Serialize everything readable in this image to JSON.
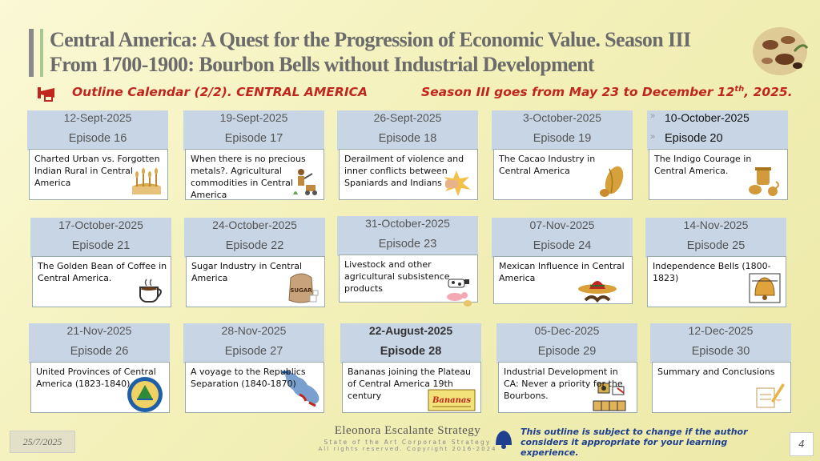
{
  "title": {
    "line1": "Central America:  A Quest for the Progression of  Economic Value. Season III",
    "line2": "From 1700-1900: Bourbon Bells without Industrial Development"
  },
  "subtitle": {
    "outline": "Outline Calendar (2/2).  CENTRAL AMERICA",
    "season_prefix": "Season III goes from May 23 to December 12",
    "season_sup": "th",
    "season_suffix": ", 2025."
  },
  "cards": [
    {
      "date": "12-Sept-2025",
      "episode": "Episode 16",
      "text": "Charted Urban vs. Forgotten Indian Rural in Central America",
      "icon": "wheat-field-icon"
    },
    {
      "date": "19-Sept-2025",
      "episode": "Episode 17",
      "text": "When there is no precious metals?.  Agricultural commodities in Central America",
      "icon": "farmer-icon"
    },
    {
      "date": "26-Sept-2025",
      "episode": "Episode 18",
      "text": "Derailment of violence and inner conflicts between Spaniards and Indians",
      "icon": "fist-icon"
    },
    {
      "date": "3-October-2025",
      "episode": "Episode 19",
      "text": "The Cacao Industry in Central America",
      "icon": "cacao-pod-icon"
    },
    {
      "date": "10-October-2025",
      "episode": "Episode 20",
      "text": "The Indigo Courage in Central America.",
      "icon": "indigo-pot-icon"
    },
    {
      "date": "17-October-2025",
      "episode": "Episode 21",
      "text": "The Golden Bean of Coffee in Central America.",
      "icon": "coffee-cup-icon"
    },
    {
      "date": "24-October-2025",
      "episode": "Episode 22",
      "text": "Sugar Industry in Central America",
      "icon": "sugar-sack-icon",
      "icon_label": "SUGAR"
    },
    {
      "date": "31-October-2025",
      "episode": "Episode 23",
      "text": "Livestock and other agricultural subsistence products",
      "icon": "livestock-icon"
    },
    {
      "date": "07-Nov-2025",
      "episode": "Episode 24",
      "text": "Mexican Influence in Central America",
      "icon": "sombrero-icon"
    },
    {
      "date": "14-Nov-2025",
      "episode": "Episode 25",
      "text": "Independence Bells (1800-1823)",
      "icon": "bell-icon"
    },
    {
      "date": "21-Nov-2025",
      "episode": "Episode 26",
      "text": "United Provinces of Central America (1823-1840)",
      "icon": "coat-of-arms-icon"
    },
    {
      "date": "28-Nov-2025",
      "episode": "Episode 27",
      "text": "A voyage to the Republics Separation  (1840-1870)",
      "icon": "map-icon"
    },
    {
      "date": "22-August-2025",
      "episode": "Episode 28",
      "text": "Bananas joining the Plateau of Central America 19th century",
      "icon": "bananas-crate-icon",
      "icon_label": "Bananas"
    },
    {
      "date": "05-Dec-2025",
      "episode": "Episode 29",
      "text": "Industrial Development in CA: Never a priority for the Bourbons.",
      "icon": "factory-icon"
    },
    {
      "date": "12-Dec-2025",
      "episode": "Episode 30",
      "text": "Summary and Conclusions",
      "icon": "writing-hand-icon"
    }
  ],
  "footer": {
    "date": "25/7/2025",
    "brand_name": "Eleonora Escalante Strategy",
    "brand_tag": "State of the Art Corporate Strategy",
    "brand_copy": "All rights reserved. Copyright 2016-2024",
    "notice": "This outline is subject to change if the author considers it appropriate for your learning experience.",
    "page": "4"
  },
  "colors": {
    "accent": "#c0261e",
    "header_blue": "#c7d5e5",
    "notice": "#1d3f8f"
  }
}
